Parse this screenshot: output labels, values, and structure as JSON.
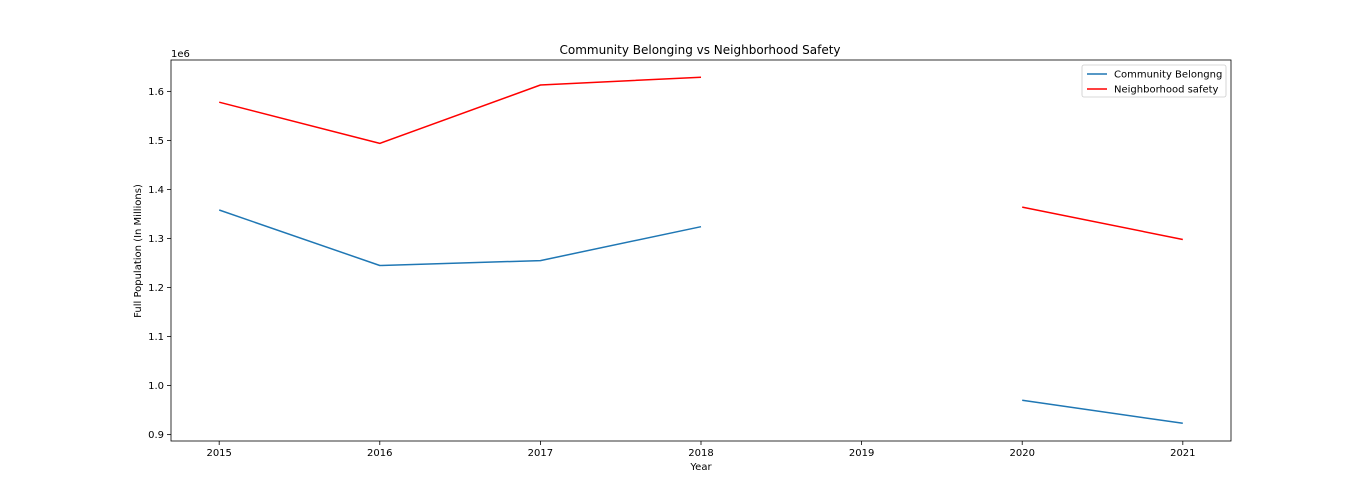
{
  "chart_data": {
    "type": "line",
    "title": "Community Belonging vs Neighborhood Safety",
    "xlabel": "Year",
    "ylabel": "Full Population (In Millions)",
    "y_offset_label": "1e6",
    "x_ticks": [
      2015,
      2016,
      2017,
      2018,
      2019,
      2020,
      2021
    ],
    "y_ticks": [
      "0.9",
      "1.0",
      "1.1",
      "1.2",
      "1.3",
      "1.4",
      "1.5",
      "1.6"
    ],
    "y_tick_values": [
      0.9,
      1.0,
      1.1,
      1.2,
      1.3,
      1.4,
      1.5,
      1.6
    ],
    "xlim": [
      2014.7,
      2021.3
    ],
    "ylim": [
      0.887,
      1.664
    ],
    "grid": false,
    "legend_position": "top-right",
    "series": [
      {
        "name": "Community Belongng",
        "color": "#1f77b4",
        "x": [
          2015,
          2016,
          2017,
          2018,
          2019,
          2020,
          2021
        ],
        "values": [
          1.358,
          1.245,
          1.255,
          1.324,
          null,
          0.97,
          0.923
        ]
      },
      {
        "name": "Neighborhood safety",
        "color": "#ff0000",
        "x": [
          2015,
          2016,
          2017,
          2018,
          2019,
          2020,
          2021
        ],
        "values": [
          1.578,
          1.494,
          1.613,
          1.629,
          null,
          1.364,
          1.298
        ]
      }
    ]
  }
}
